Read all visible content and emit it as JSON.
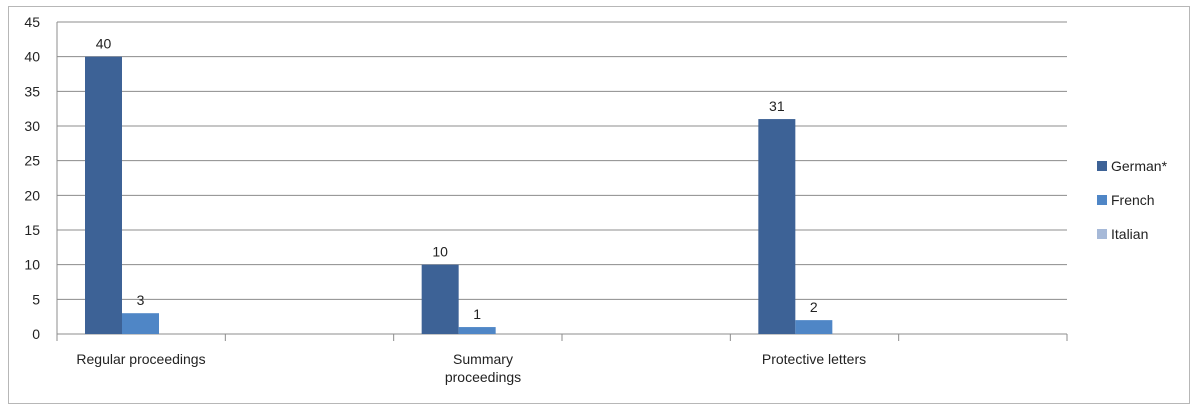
{
  "chart_data": {
    "type": "bar",
    "categories": [
      [
        "Regular proceedings"
      ],
      [
        "Summary",
        "proceedings"
      ],
      [
        "Protective letters"
      ]
    ],
    "series": [
      {
        "name": "German*",
        "values": [
          40,
          10,
          31
        ],
        "color": "#3d6296"
      },
      {
        "name": "French",
        "values": [
          3,
          1,
          2
        ],
        "color": "#4f86c6"
      },
      {
        "name": "Italian",
        "values": [
          0,
          0,
          0
        ],
        "color": "#a6b9d8"
      }
    ],
    "data_labels": [
      [
        "40",
        "10",
        "31"
      ],
      [
        "3",
        "1",
        "2"
      ],
      [
        "",
        "",
        ""
      ]
    ],
    "ylim": [
      0,
      45
    ],
    "y_ticks": [
      0,
      5,
      10,
      15,
      20,
      25,
      30,
      35,
      40,
      45
    ],
    "grid": true,
    "legend_position": "right",
    "title": "",
    "xlabel": "",
    "ylabel": ""
  }
}
